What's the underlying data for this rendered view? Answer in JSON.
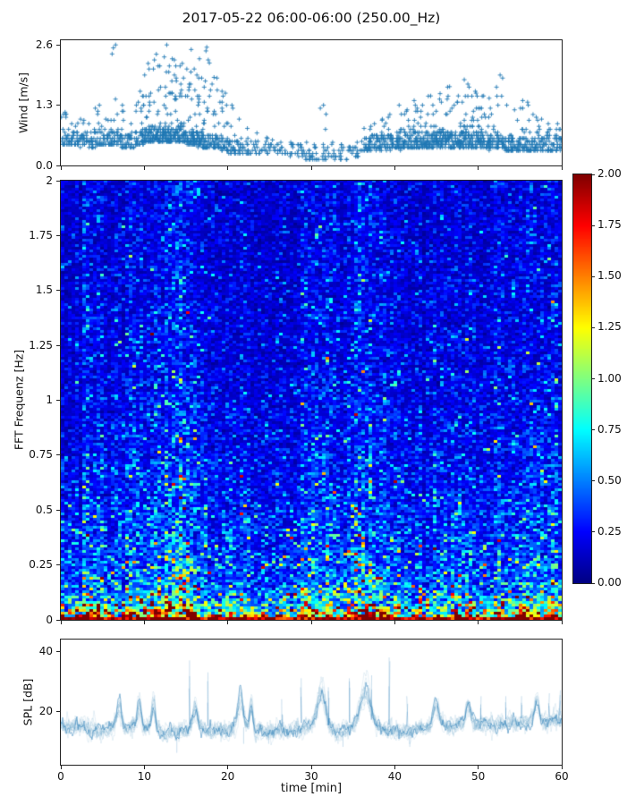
{
  "title": "2017-05-22 06:00-06:00 (250.00_Hz)",
  "accent_color": "#1f77b4",
  "chart_data": [
    {
      "id": "wind",
      "type": "scatter",
      "marker": "+",
      "color": "#1f77b4",
      "ylabel": "Wind [m/s]",
      "ylim": [
        0,
        2.7
      ],
      "yticks": [
        0,
        1.3,
        2.6
      ],
      "ytick_labels": [
        "0.0",
        "1.3",
        "2.6"
      ],
      "xlim": [
        0,
        60
      ],
      "grid": false,
      "per_minute_max": [
        1.15,
        0.9,
        1.0,
        0.9,
        1.3,
        1.0,
        2.6,
        1.3,
        0.9,
        1.6,
        2.2,
        2.4,
        2.6,
        2.3,
        2.2,
        2.5,
        2.3,
        2.55,
        1.9,
        1.6,
        1.3,
        1.0,
        0.8,
        0.7,
        0.6,
        0.55,
        0.5,
        0.5,
        0.45,
        0.5,
        0.45,
        1.3,
        0.5,
        0.45,
        0.4,
        0.5,
        0.8,
        0.9,
        1.0,
        1.1,
        1.3,
        1.2,
        1.4,
        1.3,
        1.5,
        1.55,
        1.7,
        1.5,
        1.85,
        1.6,
        1.5,
        1.45,
        1.95,
        1.3,
        1.2,
        1.4,
        1.1,
        1.0,
        0.9,
        0.9
      ],
      "per_minute_min": [
        0.45,
        0.45,
        0.4,
        0.4,
        0.4,
        0.45,
        0.45,
        0.4,
        0.4,
        0.45,
        0.5,
        0.5,
        0.5,
        0.5,
        0.5,
        0.45,
        0.4,
        0.35,
        0.35,
        0.3,
        0.25,
        0.25,
        0.25,
        0.25,
        0.25,
        0.25,
        0.2,
        0.2,
        0.2,
        0.1,
        0.1,
        0.1,
        0.1,
        0.1,
        0.15,
        0.2,
        0.3,
        0.35,
        0.35,
        0.35,
        0.35,
        0.4,
        0.4,
        0.4,
        0.4,
        0.4,
        0.4,
        0.4,
        0.4,
        0.4,
        0.4,
        0.35,
        0.35,
        0.3,
        0.3,
        0.3,
        0.3,
        0.3,
        0.3,
        0.3
      ],
      "per_minute_count": [
        30,
        25,
        28,
        25,
        30,
        28,
        35,
        30,
        25,
        45,
        55,
        60,
        60,
        60,
        55,
        60,
        55,
        50,
        40,
        35,
        30,
        20,
        15,
        12,
        12,
        10,
        10,
        10,
        12,
        14,
        12,
        14,
        10,
        10,
        8,
        12,
        25,
        30,
        35,
        35,
        40,
        40,
        45,
        45,
        48,
        50,
        50,
        48,
        50,
        45,
        45,
        40,
        40,
        35,
        35,
        35,
        30,
        30,
        30,
        28
      ]
    },
    {
      "id": "spectrogram",
      "type": "heatmap",
      "ylabel": "FFT Frequenz [Hz]",
      "ylim": [
        0,
        2
      ],
      "yticks": [
        0,
        0.25,
        0.5,
        0.75,
        1,
        1.25,
        1.5,
        1.75,
        2
      ],
      "ytick_labels": [
        "0",
        "0.25",
        "0.5",
        "0.75",
        "1",
        "1.25",
        "1.5",
        "1.75",
        "2"
      ],
      "xlim": [
        0,
        60
      ],
      "clim": [
        0,
        2
      ],
      "colormap": "jet",
      "colormap_stops": [
        [
          0.0,
          [
            0,
            0,
            131
          ]
        ],
        [
          0.125,
          [
            0,
            0,
            255
          ]
        ],
        [
          0.375,
          [
            0,
            255,
            255
          ]
        ],
        [
          0.625,
          [
            255,
            255,
            0
          ]
        ],
        [
          0.875,
          [
            255,
            0,
            0
          ]
        ],
        [
          1.0,
          [
            128,
            0,
            0
          ]
        ]
      ],
      "colorbar": {
        "ticks": [
          0,
          0.25,
          0.5,
          0.75,
          1,
          1.25,
          1.5,
          1.75,
          2
        ],
        "tick_labels": [
          "0.00",
          "0.25",
          "0.50",
          "0.75",
          "1.00",
          "1.25",
          "1.50",
          "1.75",
          "2.00"
        ]
      },
      "freq_profile": [
        [
          0,
          1.9
        ],
        [
          0.01,
          1.55
        ],
        [
          0.03,
          1.1
        ],
        [
          0.06,
          0.8
        ],
        [
          0.1,
          0.55
        ],
        [
          0.15,
          0.45
        ],
        [
          0.25,
          0.38
        ],
        [
          0.4,
          0.32
        ],
        [
          0.6,
          0.27
        ],
        [
          0.8,
          0.23
        ],
        [
          1.2,
          0.2
        ],
        [
          1.6,
          0.18
        ],
        [
          2,
          0.17
        ]
      ],
      "time_profile": [
        0.9,
        0.85,
        0.9,
        1.1,
        1.15,
        1.0,
        0.9,
        0.95,
        1.1,
        1.25,
        1.2,
        1.1,
        1.3,
        1.45,
        1.5,
        1.45,
        1.3,
        1.1,
        0.9,
        0.85,
        0.9,
        1.05,
        1.1,
        0.9,
        0.8,
        0.8,
        0.85,
        0.8,
        0.95,
        1.05,
        1.1,
        1.25,
        1.2,
        1.0,
        1.05,
        1.15,
        1.35,
        1.4,
        1.2,
        1.0,
        1.05,
        0.95,
        0.9,
        0.85,
        0.9,
        0.9,
        0.95,
        1.0,
        1.05,
        0.95,
        0.9,
        0.95,
        1.0,
        1.1,
        1.0,
        1.05,
        1.15,
        1.1,
        1.05,
        1.1,
        1.05
      ]
    },
    {
      "id": "spl",
      "type": "line",
      "color": "#1f77b4",
      "ylabel": "SPL [dB]",
      "xlabel": "time [min]",
      "ylim": [
        2,
        44
      ],
      "yticks": [
        20,
        40
      ],
      "ytick_labels": [
        "20",
        "40"
      ],
      "xlim": [
        0,
        60
      ],
      "xticks": [
        0,
        10,
        20,
        30,
        40,
        50,
        60
      ],
      "xtick_labels": [
        "0",
        "10",
        "20",
        "30",
        "40",
        "50",
        "60"
      ],
      "base_per_min": [
        15.5,
        15,
        16,
        14.5,
        14,
        14,
        15,
        17,
        14.5,
        15.5,
        14.5,
        16,
        13.5,
        13,
        13.5,
        14,
        15.5,
        14,
        14,
        14.5,
        14,
        16,
        15.5,
        13.5,
        14,
        13.5,
        14,
        13.5,
        15,
        15,
        16,
        18,
        14.5,
        13,
        14.5,
        15.5,
        19,
        16.5,
        14.5,
        14.5,
        14,
        13.5,
        14,
        14.5,
        15.5,
        15.5,
        16,
        15.5,
        16.5,
        16,
        16.5,
        16,
        16,
        16.5,
        16,
        16.5,
        17,
        16.5,
        16.5,
        17.5,
        17.5
      ],
      "up_spikes": [
        {
          "t": 7.0,
          "p": 26,
          "w": 0.25
        },
        {
          "t": 9.4,
          "p": 25,
          "w": 0.2
        },
        {
          "t": 11.1,
          "p": 26,
          "w": 0.2
        },
        {
          "t": 15.4,
          "p": 37,
          "w": 0.05
        },
        {
          "t": 16.1,
          "p": 24,
          "w": 0.3
        },
        {
          "t": 17.6,
          "p": 33,
          "w": 0.05
        },
        {
          "t": 21.5,
          "p": 28,
          "w": 0.3
        },
        {
          "t": 22.8,
          "p": 27,
          "w": 0.2
        },
        {
          "t": 26.5,
          "p": 24,
          "w": 0.05
        },
        {
          "t": 28.8,
          "p": 31,
          "w": 0.07
        },
        {
          "t": 31.3,
          "p": 30,
          "w": 0.5
        },
        {
          "t": 32.1,
          "p": 28,
          "w": 0.06
        },
        {
          "t": 34.6,
          "p": 31,
          "w": 0.06
        },
        {
          "t": 36.6,
          "p": 33,
          "w": 0.6
        },
        {
          "t": 37.2,
          "p": 32,
          "w": 0.06
        },
        {
          "t": 39.3,
          "p": 38,
          "w": 0.05
        },
        {
          "t": 41.5,
          "p": 25,
          "w": 0.05
        },
        {
          "t": 45.0,
          "p": 25,
          "w": 0.3
        },
        {
          "t": 48.8,
          "p": 26,
          "w": 0.25
        },
        {
          "t": 50.3,
          "p": 25,
          "w": 0.05
        },
        {
          "t": 53.3,
          "p": 25,
          "w": 0.06
        },
        {
          "t": 55.2,
          "p": 25,
          "w": 0.05
        },
        {
          "t": 57.0,
          "p": 27,
          "w": 0.3
        },
        {
          "t": 58.5,
          "p": 26,
          "w": 0.06
        },
        {
          "t": 59.8,
          "p": 27,
          "w": 0.08
        }
      ],
      "down_spikes": [
        {
          "t": 13.9,
          "p": 6
        },
        {
          "t": 21.9,
          "p": 9
        },
        {
          "t": 24.9,
          "p": 9
        },
        {
          "t": 33.8,
          "p": 8
        },
        {
          "t": 41.8,
          "p": 8
        }
      ]
    }
  ]
}
